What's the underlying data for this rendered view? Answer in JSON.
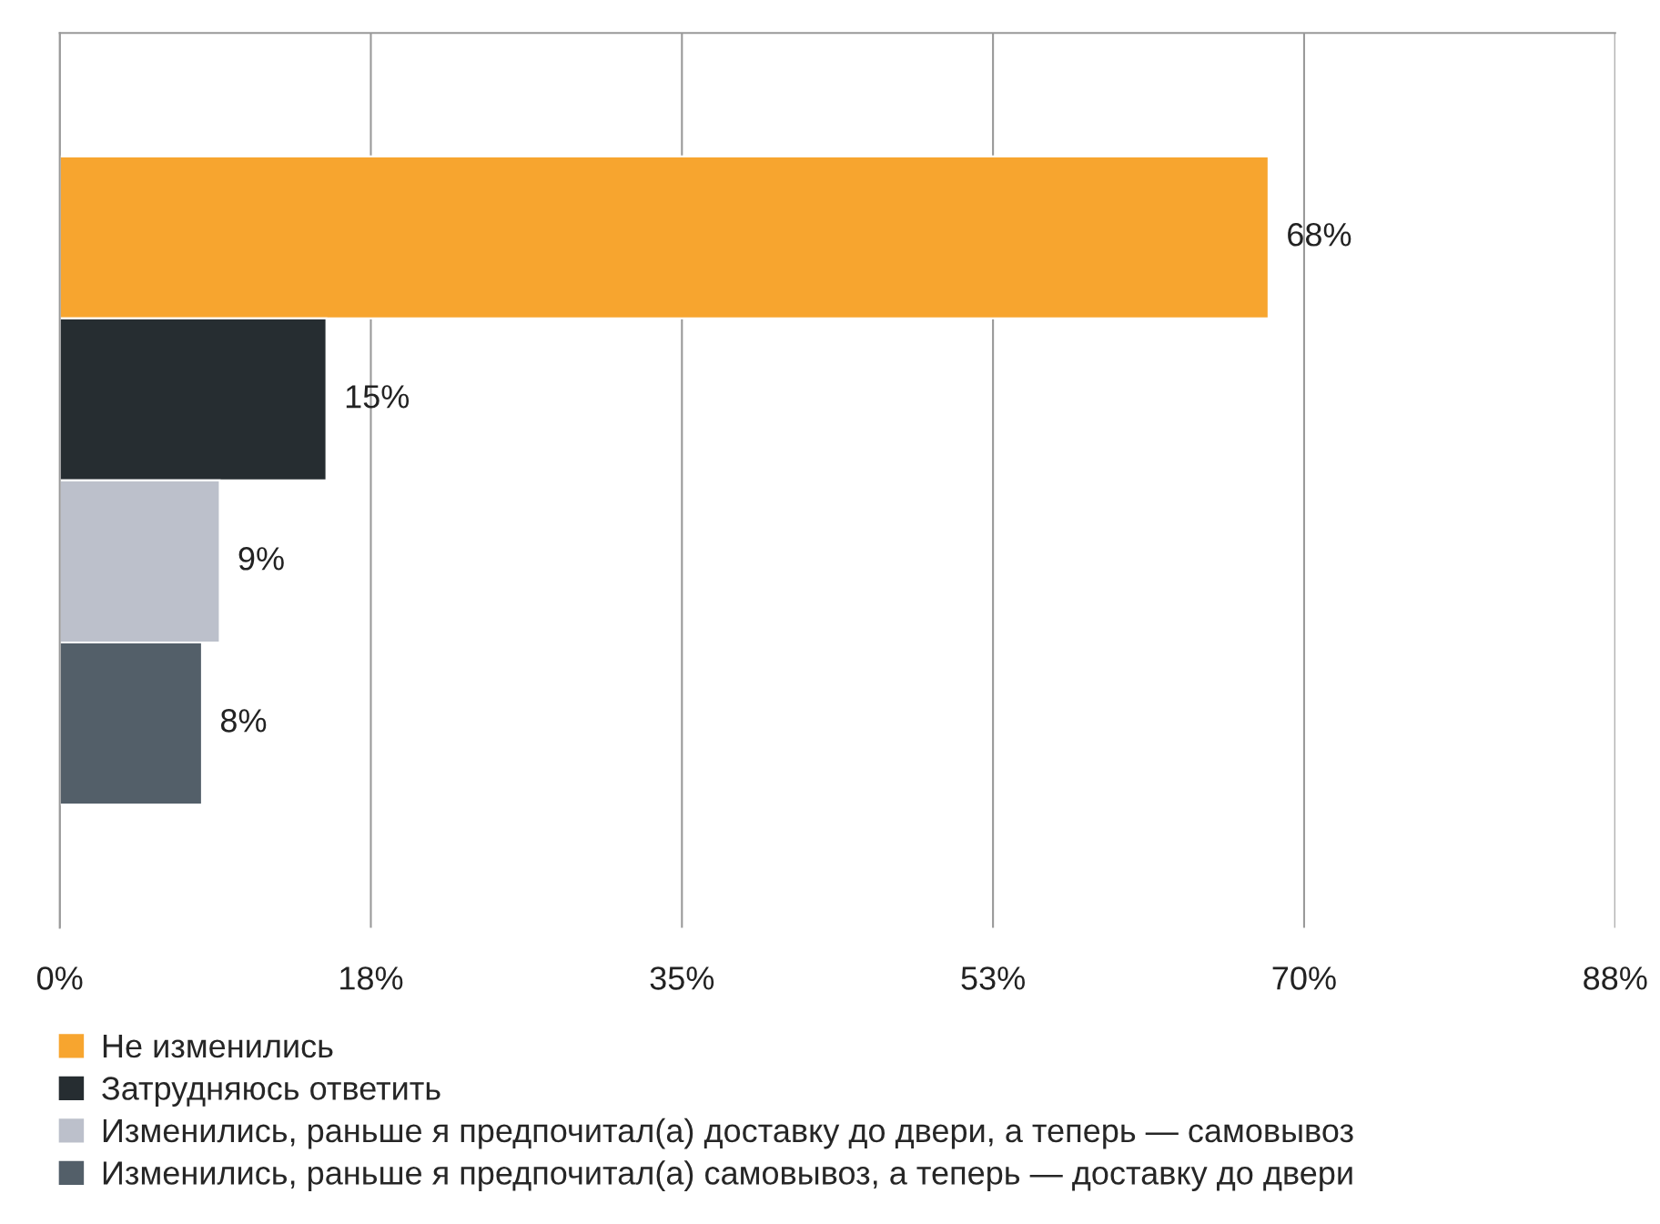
{
  "chart_data": {
    "type": "bar",
    "orientation": "horizontal",
    "categories": [
      null
    ],
    "series": [
      {
        "name": "Не изменились",
        "color": "#f7a52f",
        "values": [
          68
        ]
      },
      {
        "name": "Затрудняюсь ответить",
        "color": "#262d31",
        "values": [
          15
        ]
      },
      {
        "name": "Изменились, раньше я предпочитал(а) доставку до двери, а теперь — самовывоз",
        "color": "#bcc0cb",
        "values": [
          9
        ]
      },
      {
        "name": "Изменились, раньше я предпочитал(а) самовывоз, а теперь — доставку до двери",
        "color": "#535f69",
        "values": [
          8
        ]
      }
    ],
    "xlim": [
      0,
      87.5
    ],
    "xticks": [
      {
        "value": 0,
        "label": "0%"
      },
      {
        "value": 17.5,
        "label": "18%"
      },
      {
        "value": 35,
        "label": "35%"
      },
      {
        "value": 52.5,
        "label": "53%"
      },
      {
        "value": 70,
        "label": "70%"
      },
      {
        "value": 87.5,
        "label": "88%"
      }
    ],
    "value_labels": [
      "68%",
      "15%",
      "9%",
      "8%"
    ],
    "grid": "x",
    "legend": "bottom"
  }
}
